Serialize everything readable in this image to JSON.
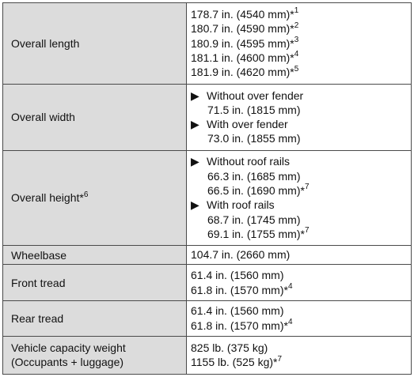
{
  "rows": [
    {
      "label": "Overall length",
      "label_sup": "",
      "lines": [
        {
          "text": "178.7 in. (4540 mm)*",
          "sup": "1"
        },
        {
          "text": "180.7 in. (4590 mm)*",
          "sup": "2"
        },
        {
          "text": "180.9 in. (4595 mm)*",
          "sup": "3"
        },
        {
          "text": "181.1 in. (4600 mm)*",
          "sup": "4"
        },
        {
          "text": "181.9 in. (4620 mm)*",
          "sup": "5"
        }
      ]
    },
    {
      "label": "Overall width",
      "label_sup": "",
      "lines": [
        {
          "arrow": "▶",
          "text": "Without over fender"
        },
        {
          "text": "71.5 in. (1815 mm)"
        },
        {
          "arrow": "▶",
          "text": "With over fender"
        },
        {
          "text": "73.0 in. (1855 mm)"
        }
      ]
    },
    {
      "label": "Overall height*",
      "label_sup": "6",
      "lines": [
        {
          "arrow": "▶",
          "text": "Without roof rails"
        },
        {
          "text": "66.3 in. (1685 mm)"
        },
        {
          "text": "66.5 in. (1690 mm)*",
          "sup": "7"
        },
        {
          "arrow": "▶",
          "text": "With roof rails"
        },
        {
          "text": "68.7 in. (1745 mm)"
        },
        {
          "text": "69.1 in. (1755 mm)*",
          "sup": "7"
        }
      ]
    },
    {
      "label": "Wheelbase",
      "label_sup": "",
      "lines": [
        {
          "text": "104.7 in. (2660 mm)"
        }
      ]
    },
    {
      "label": "Front tread",
      "label_sup": "",
      "lines": [
        {
          "text": "61.4 in. (1560 mm)"
        },
        {
          "text": "61.8 in. (1570 mm)*",
          "sup": "4"
        }
      ]
    },
    {
      "label": "Rear tread",
      "label_sup": "",
      "lines": [
        {
          "text": "61.4 in. (1560 mm)"
        },
        {
          "text": "61.8 in. (1570 mm)*",
          "sup": "4"
        }
      ]
    },
    {
      "label": "Vehicle capacity weight",
      "label_line2": "(Occupants + luggage)",
      "label_sup": "",
      "lines": [
        {
          "text": "825 lb. (375 kg)"
        },
        {
          "text": "1155 lb. (525 kg)*",
          "sup": "7"
        }
      ]
    }
  ]
}
